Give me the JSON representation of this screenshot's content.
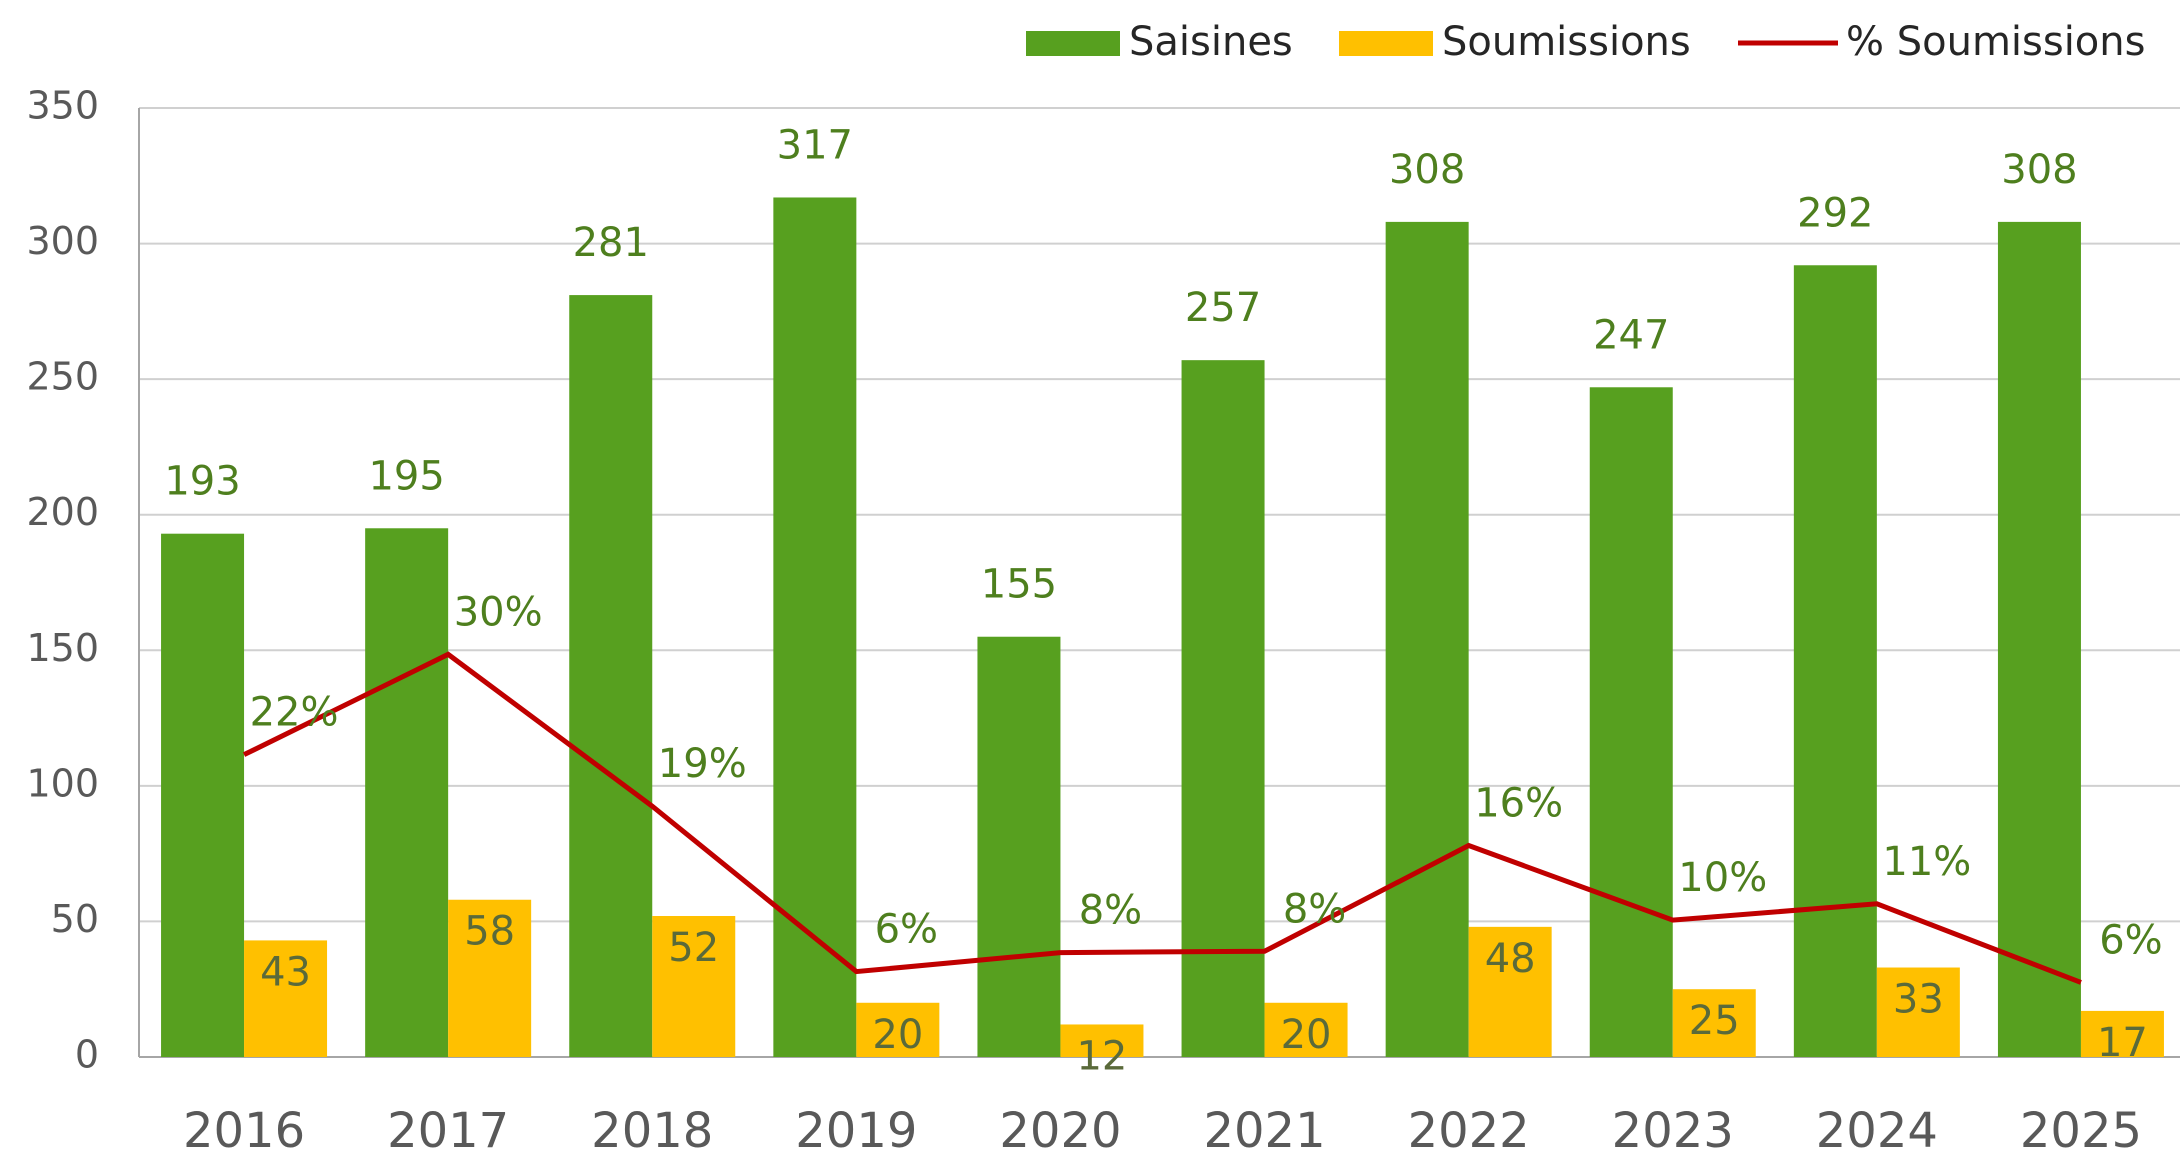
{
  "chart_data": {
    "type": "bar",
    "categories": [
      "2016",
      "2017",
      "2018",
      "2019",
      "2020",
      "2021",
      "2022",
      "2023",
      "2024",
      "2025"
    ],
    "series": [
      {
        "name": "Saisines",
        "type": "bar",
        "color": "#57a01f",
        "values": [
          193,
          195,
          281,
          317,
          155,
          257,
          308,
          247,
          292,
          308
        ]
      },
      {
        "name": "Soumissions",
        "type": "bar",
        "color": "#ffc000",
        "values": [
          43,
          58,
          52,
          20,
          12,
          20,
          48,
          25,
          33,
          17
        ]
      },
      {
        "name": "% Soumissions",
        "type": "line",
        "axis": "y2",
        "color": "#c00000",
        "values": [
          22.3,
          29.7,
          18.5,
          6.3,
          7.7,
          7.8,
          15.6,
          10.1,
          11.3,
          5.5
        ],
        "value_labels": [
          "22%",
          "30%",
          "19%",
          "6%",
          "8%",
          "8%",
          "16%",
          "10%",
          "11%",
          "6%"
        ]
      }
    ],
    "ylim": [
      0,
      350
    ],
    "yticks": [
      0,
      50,
      100,
      150,
      200,
      250,
      300,
      350
    ],
    "y2lim": [
      0,
      70
    ],
    "grid": true,
    "legend": "top-right"
  }
}
